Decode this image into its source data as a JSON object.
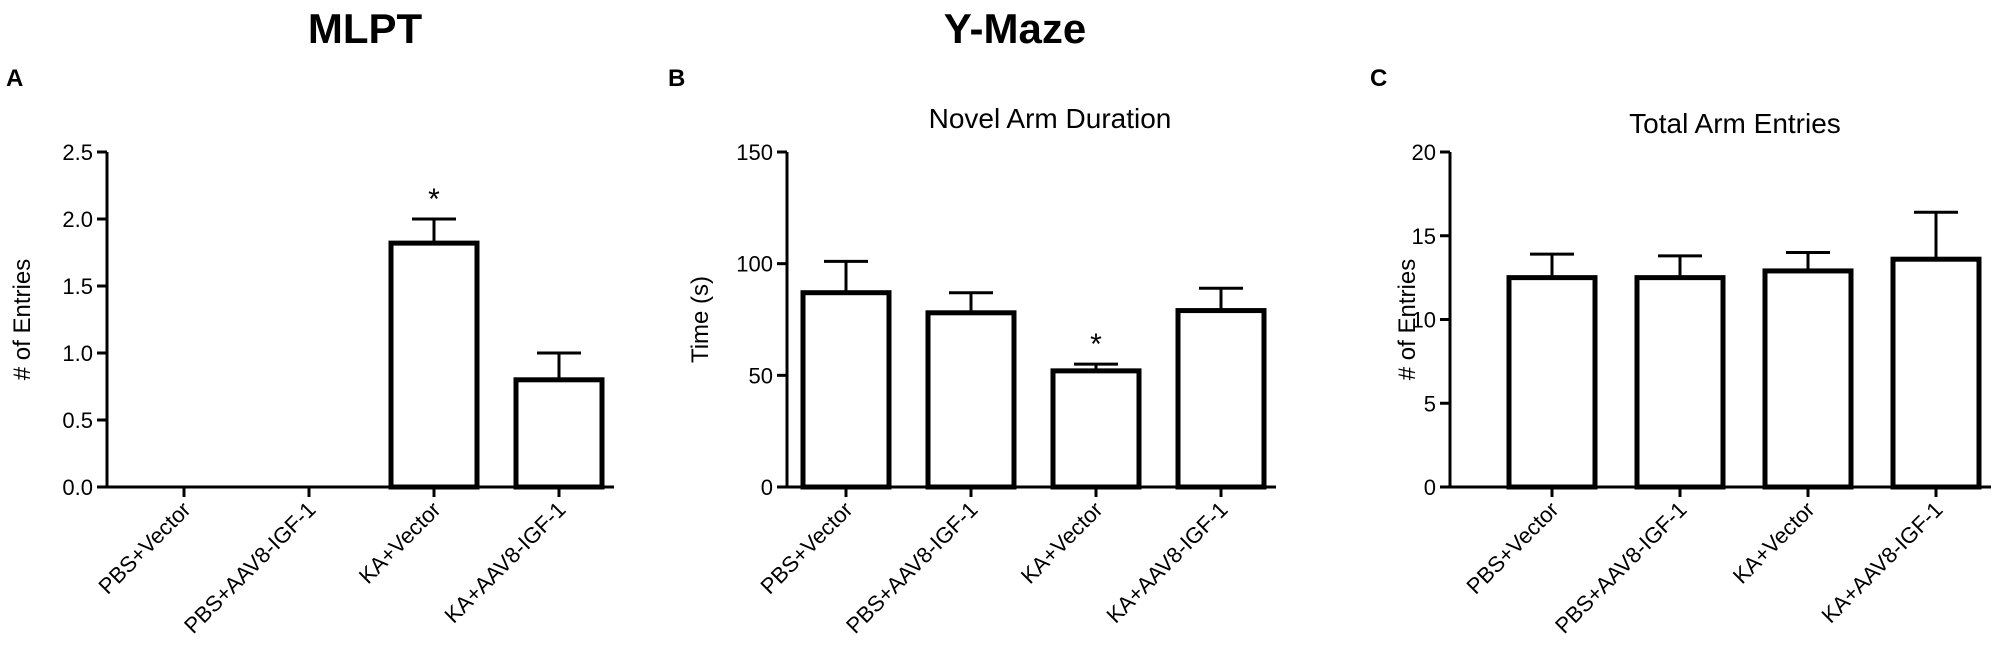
{
  "header": {
    "left_title": "MLPT",
    "right_title": "Y-Maze"
  },
  "chart_data": [
    {
      "type": "bar",
      "panel": "A",
      "title": "",
      "xlabel": "",
      "ylabel": "# of Entries",
      "ylim": [
        0,
        2.5
      ],
      "yticks": [
        0.0,
        0.5,
        1.0,
        1.5,
        2.0,
        2.5
      ],
      "ytick_labels": [
        "0.0",
        "0.5",
        "1.0",
        "1.5",
        "2.0",
        "2.5"
      ],
      "categories": [
        "PBS+Vector",
        "PBS+AAV8-IGF-1",
        "KA+Vector",
        "KA+AAV8-IGF-1"
      ],
      "values": [
        0,
        0,
        1.82,
        0.8
      ],
      "errors": [
        0,
        0,
        0.18,
        0.2
      ],
      "annotations": [
        {
          "category": "KA+Vector",
          "text": "*"
        }
      ],
      "grid": false,
      "bar_fill": "#ffffff",
      "bar_edge": "#000000"
    },
    {
      "type": "bar",
      "panel": "B",
      "title": "Novel Arm Duration",
      "xlabel": "",
      "ylabel": "Time (s)",
      "ylim": [
        0,
        150
      ],
      "yticks": [
        0,
        50,
        100,
        150
      ],
      "ytick_labels": [
        "0",
        "50",
        "100",
        "150"
      ],
      "categories": [
        "PBS+Vector",
        "PBS+AAV8-IGF-1",
        "KA+Vector",
        "KA+AAV8-IGF-1"
      ],
      "values": [
        87,
        78,
        52,
        79
      ],
      "errors": [
        14,
        9,
        3,
        10
      ],
      "annotations": [
        {
          "category": "KA+Vector",
          "text": "*"
        }
      ],
      "grid": false,
      "bar_fill": "#ffffff",
      "bar_edge": "#000000"
    },
    {
      "type": "bar",
      "panel": "C",
      "title": "Total Arm Entries",
      "xlabel": "",
      "ylabel": "# of Entries",
      "ylim": [
        0,
        20
      ],
      "yticks": [
        0,
        5,
        10,
        15,
        20
      ],
      "ytick_labels": [
        "0",
        "5",
        "10",
        "15",
        "20"
      ],
      "categories": [
        "PBS+Vector",
        "PBS+AAV8-IGF-1",
        "KA+Vector",
        "KA+AAV8-IGF-1"
      ],
      "values": [
        12.5,
        12.5,
        12.9,
        13.6
      ],
      "errors": [
        1.4,
        1.3,
        1.1,
        2.8
      ],
      "annotations": [],
      "grid": false,
      "bar_fill": "#ffffff",
      "bar_edge": "#000000"
    }
  ]
}
